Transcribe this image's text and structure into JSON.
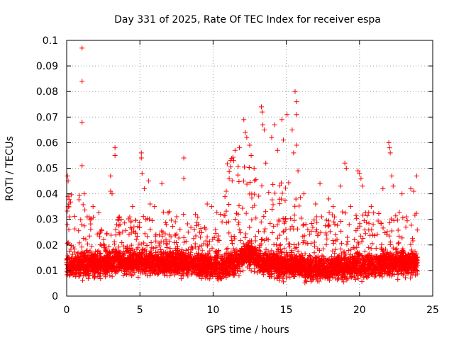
{
  "chart_data": {
    "type": "scatter",
    "title": "Day 331 of 2025, Rate Of TEC Index for receiver espa",
    "xlabel": "GPS time / hours",
    "ylabel": "ROTI / TECUs",
    "xlim": [
      0,
      25
    ],
    "ylim": [
      0,
      0.1
    ],
    "x_ticks": [
      0,
      5,
      10,
      15,
      20,
      25
    ],
    "x_tick_labels": [
      "0",
      "5",
      "10",
      "15",
      "20",
      "25"
    ],
    "y_ticks": [
      0,
      0.01,
      0.02,
      0.03,
      0.04,
      0.05,
      0.06,
      0.07,
      0.08,
      0.09,
      0.1
    ],
    "y_tick_labels": [
      "0",
      "0.01",
      "0.02",
      "0.03",
      "0.04",
      "0.05",
      "0.06",
      "0.07",
      "0.08",
      "0.09",
      "0.1"
    ],
    "grid": true,
    "marker": "+",
    "marker_color": "#ff0000",
    "series": [
      {
        "points": [
          [
            0.05,
            0.047
          ],
          [
            0.1,
            0.045
          ],
          [
            0.1,
            0.039
          ],
          [
            0.15,
            0.036
          ],
          [
            0.2,
            0.031
          ],
          [
            1.05,
            0.097
          ],
          [
            1.05,
            0.084
          ],
          [
            1.05,
            0.068
          ],
          [
            1.05,
            0.051
          ],
          [
            1.2,
            0.04
          ],
          [
            1.4,
            0.031
          ],
          [
            1.8,
            0.035
          ],
          [
            2.3,
            0.025
          ],
          [
            2.6,
            0.019
          ],
          [
            3.0,
            0.047
          ],
          [
            3.0,
            0.041
          ],
          [
            3.1,
            0.04
          ],
          [
            3.3,
            0.058
          ],
          [
            3.3,
            0.055
          ],
          [
            3.5,
            0.03
          ],
          [
            3.6,
            0.031
          ],
          [
            4.5,
            0.035
          ],
          [
            4.7,
            0.025
          ],
          [
            5.1,
            0.056
          ],
          [
            5.1,
            0.054
          ],
          [
            5.15,
            0.048
          ],
          [
            5.3,
            0.042
          ],
          [
            5.6,
            0.045
          ],
          [
            5.7,
            0.036
          ],
          [
            6.0,
            0.035
          ],
          [
            6.5,
            0.044
          ],
          [
            6.8,
            0.028
          ],
          [
            7.0,
            0.033
          ],
          [
            8.0,
            0.054
          ],
          [
            8.0,
            0.046
          ],
          [
            8.3,
            0.025
          ],
          [
            9.0,
            0.028
          ],
          [
            9.6,
            0.036
          ],
          [
            9.9,
            0.035
          ],
          [
            10.5,
            0.032
          ],
          [
            10.9,
            0.041
          ],
          [
            11.1,
            0.046
          ],
          [
            11.2,
            0.053
          ],
          [
            11.5,
            0.057
          ],
          [
            11.8,
            0.058
          ],
          [
            12.1,
            0.069
          ],
          [
            12.2,
            0.064
          ],
          [
            12.3,
            0.062
          ],
          [
            12.5,
            0.059
          ],
          [
            12.6,
            0.055
          ],
          [
            12.8,
            0.05
          ],
          [
            13.3,
            0.074
          ],
          [
            13.35,
            0.072
          ],
          [
            13.4,
            0.067
          ],
          [
            13.5,
            0.065
          ],
          [
            13.6,
            0.052
          ],
          [
            14.0,
            0.062
          ],
          [
            14.2,
            0.067
          ],
          [
            14.4,
            0.057
          ],
          [
            14.7,
            0.069
          ],
          [
            14.8,
            0.061
          ],
          [
            15.05,
            0.071
          ],
          [
            15.4,
            0.065
          ],
          [
            15.5,
            0.056
          ],
          [
            15.6,
            0.08
          ],
          [
            15.7,
            0.076
          ],
          [
            15.7,
            0.071
          ],
          [
            15.7,
            0.059
          ],
          [
            15.8,
            0.049
          ],
          [
            16.2,
            0.04
          ],
          [
            17.0,
            0.036
          ],
          [
            17.3,
            0.044
          ],
          [
            17.9,
            0.038
          ],
          [
            18.2,
            0.035
          ],
          [
            18.7,
            0.043
          ],
          [
            19.0,
            0.052
          ],
          [
            19.1,
            0.05
          ],
          [
            19.4,
            0.035
          ],
          [
            19.9,
            0.049
          ],
          [
            20.0,
            0.048
          ],
          [
            20.1,
            0.046
          ],
          [
            20.2,
            0.043
          ],
          [
            20.8,
            0.035
          ],
          [
            21.6,
            0.042
          ],
          [
            22.0,
            0.06
          ],
          [
            22.05,
            0.058
          ],
          [
            22.1,
            0.056
          ],
          [
            22.2,
            0.047
          ],
          [
            22.3,
            0.043
          ],
          [
            22.9,
            0.04
          ],
          [
            23.2,
            0.031
          ],
          [
            23.5,
            0.042
          ],
          [
            23.7,
            0.041
          ],
          [
            23.9,
            0.047
          ]
        ]
      }
    ]
  }
}
